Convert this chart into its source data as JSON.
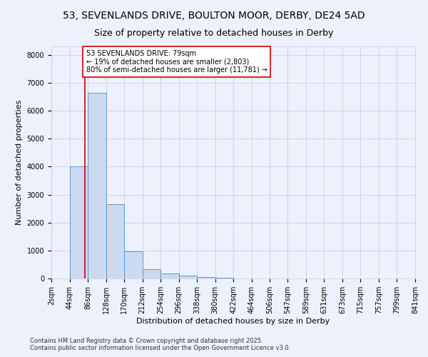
{
  "title_line1": "53, SEVENLANDS DRIVE, BOULTON MOOR, DERBY, DE24 5AD",
  "title_line2": "Size of property relative to detached houses in Derby",
  "xlabel": "Distribution of detached houses by size in Derby",
  "ylabel": "Number of detached properties",
  "bin_edges": [
    2,
    44,
    86,
    128,
    170,
    212,
    254,
    296,
    338,
    380,
    422,
    464,
    506,
    547,
    589,
    631,
    673,
    715,
    757,
    799,
    841
  ],
  "bar_heights": [
    0,
    4010,
    6650,
    2650,
    975,
    340,
    175,
    100,
    40,
    20,
    10,
    8,
    5,
    4,
    3,
    2,
    2,
    2,
    1,
    1
  ],
  "bar_color": "#ccd9ef",
  "bar_edge_color": "#5b9bd5",
  "property_size": 79,
  "red_line_color": "#cc0000",
  "annotation_text": "53 SEVENLANDS DRIVE: 79sqm\n← 19% of detached houses are smaller (2,803)\n80% of semi-detached houses are larger (11,781) →",
  "annotation_box_color": "#ffffff",
  "annotation_box_edge": "#cc0000",
  "ylim": [
    0,
    8300
  ],
  "yticks": [
    0,
    1000,
    2000,
    3000,
    4000,
    5000,
    6000,
    7000,
    8000
  ],
  "tick_labels": [
    "2sqm",
    "44sqm",
    "86sqm",
    "128sqm",
    "170sqm",
    "212sqm",
    "254sqm",
    "296sqm",
    "338sqm",
    "380sqm",
    "422sqm",
    "464sqm",
    "506sqm",
    "547sqm",
    "589sqm",
    "631sqm",
    "673sqm",
    "715sqm",
    "757sqm",
    "799sqm",
    "841sqm"
  ],
  "footer_text": "Contains HM Land Registry data © Crown copyright and database right 2025.\nContains public sector information licensed under the Open Government Licence v3.0.",
  "bg_color": "#edf1fb",
  "grid_color": "#c8cfe8",
  "title_fontsize": 10,
  "subtitle_fontsize": 9,
  "axis_label_fontsize": 8,
  "tick_fontsize": 7,
  "annotation_fontsize": 7,
  "footer_fontsize": 6
}
